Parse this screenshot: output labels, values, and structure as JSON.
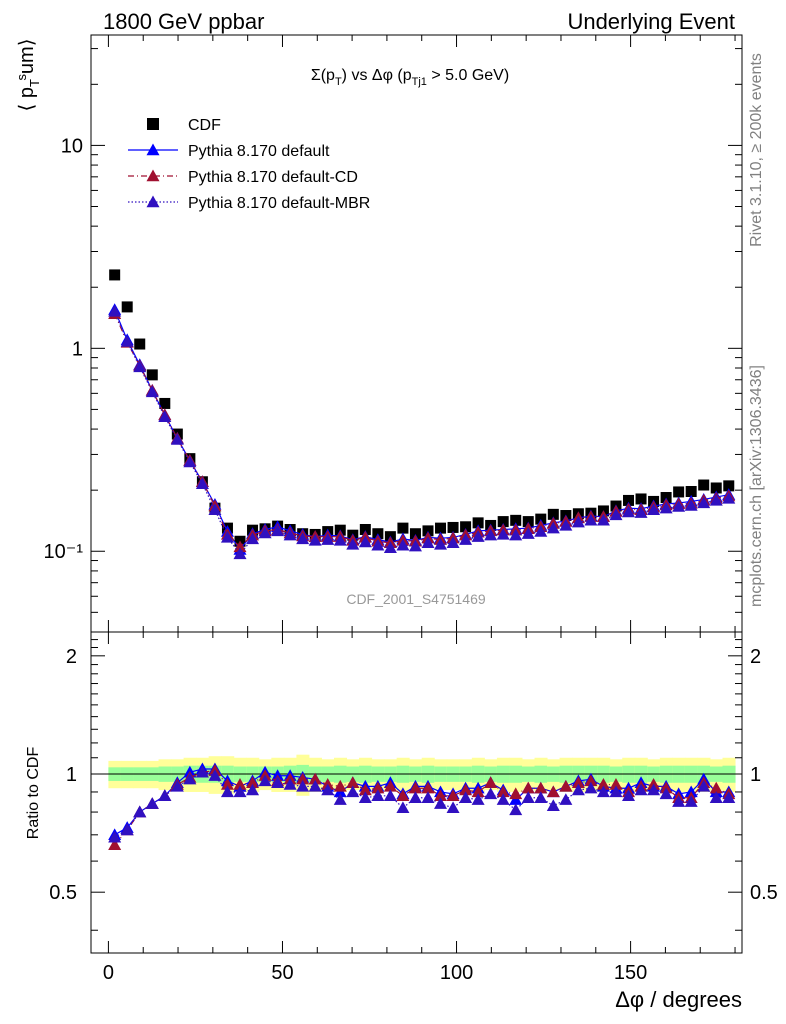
{
  "header": {
    "left": "1800 GeV ppbar",
    "right": "Underlying Event"
  },
  "side_labels": {
    "rivet": "Rivet 3.1.10, ≥ 200k events",
    "mcplots": "mcplots.cern.ch [arXiv:1306.3436]"
  },
  "watermark": "CDF_2001_S4751469",
  "chart_data": [
    {
      "type": "scatter",
      "title": "Σ(p_T) vs Δφ (p_Tj1 > 5.0 GeV)",
      "ylabel": "⟨ p_T^s um⟩",
      "xlabel": "Δφ / degrees",
      "xlim": [
        -5,
        182
      ],
      "ylim": [
        0.04,
        35
      ],
      "yscale": "log",
      "ytick_labels": [
        "10⁻¹",
        "1",
        "10"
      ],
      "xtick_labels": [
        "0",
        "50",
        "100",
        "150"
      ],
      "legend_position": "top-left",
      "x": [
        1.8,
        5.4,
        9.0,
        12.6,
        16.2,
        19.8,
        23.4,
        27.0,
        30.6,
        34.2,
        37.8,
        41.4,
        45.0,
        48.6,
        52.2,
        55.8,
        59.4,
        63.0,
        66.6,
        70.2,
        73.8,
        77.4,
        81.0,
        84.6,
        88.2,
        91.8,
        95.4,
        99.0,
        102.6,
        106.2,
        109.8,
        113.4,
        117.0,
        120.6,
        124.2,
        127.8,
        131.4,
        135.0,
        138.6,
        142.2,
        145.8,
        149.4,
        153.0,
        156.6,
        160.2,
        163.8,
        167.4,
        171.0,
        174.6,
        178.2
      ],
      "series": [
        {
          "name": "CDF",
          "marker": "square",
          "color": "#000000",
          "values": [
            2.3,
            1.6,
            1.05,
            0.74,
            0.535,
            0.378,
            0.286,
            0.22,
            0.163,
            0.13,
            0.112,
            0.127,
            0.129,
            0.133,
            0.128,
            0.122,
            0.121,
            0.125,
            0.127,
            0.12,
            0.128,
            0.122,
            0.118,
            0.13,
            0.122,
            0.126,
            0.13,
            0.131,
            0.132,
            0.138,
            0.134,
            0.14,
            0.142,
            0.14,
            0.144,
            0.152,
            0.15,
            0.153,
            0.154,
            0.158,
            0.167,
            0.178,
            0.181,
            0.176,
            0.184,
            0.196,
            0.197,
            0.212,
            0.205,
            0.21
          ]
        },
        {
          "name": "Pythia 8.170 default",
          "marker": "triangle",
          "line": "solid",
          "color": "#0000ff",
          "values": [
            1.55,
            1.1,
            0.83,
            0.62,
            0.47,
            0.36,
            0.28,
            0.22,
            0.17,
            0.125,
            0.102,
            0.122,
            0.128,
            0.132,
            0.126,
            0.121,
            0.118,
            0.12,
            0.119,
            0.114,
            0.118,
            0.114,
            0.111,
            0.115,
            0.113,
            0.117,
            0.116,
            0.117,
            0.121,
            0.126,
            0.127,
            0.128,
            0.129,
            0.13,
            0.134,
            0.138,
            0.141,
            0.146,
            0.149,
            0.148,
            0.158,
            0.163,
            0.162,
            0.167,
            0.171,
            0.173,
            0.176,
            0.18,
            0.185,
            0.19
          ]
        },
        {
          "name": "Pythia 8.170 default-CD",
          "marker": "triangle",
          "line": "dashdot",
          "color": "#a01030",
          "values": [
            1.48,
            1.07,
            0.82,
            0.62,
            0.47,
            0.36,
            0.28,
            0.22,
            0.167,
            0.121,
            0.105,
            0.12,
            0.126,
            0.128,
            0.123,
            0.119,
            0.118,
            0.118,
            0.118,
            0.113,
            0.117,
            0.112,
            0.11,
            0.113,
            0.112,
            0.116,
            0.114,
            0.116,
            0.12,
            0.124,
            0.126,
            0.127,
            0.127,
            0.129,
            0.132,
            0.137,
            0.14,
            0.146,
            0.148,
            0.148,
            0.157,
            0.161,
            0.16,
            0.165,
            0.169,
            0.171,
            0.172,
            0.178,
            0.182,
            0.187
          ]
        },
        {
          "name": "Pythia 8.170 default-MBR",
          "marker": "triangle",
          "line": "dotted",
          "color": "#3010c0",
          "values": [
            1.52,
            1.08,
            0.81,
            0.61,
            0.46,
            0.355,
            0.275,
            0.215,
            0.16,
            0.117,
            0.097,
            0.115,
            0.123,
            0.126,
            0.12,
            0.115,
            0.113,
            0.114,
            0.113,
            0.108,
            0.111,
            0.107,
            0.104,
            0.107,
            0.106,
            0.11,
            0.108,
            0.11,
            0.114,
            0.118,
            0.12,
            0.121,
            0.12,
            0.122,
            0.125,
            0.13,
            0.134,
            0.139,
            0.142,
            0.142,
            0.151,
            0.156,
            0.155,
            0.16,
            0.163,
            0.166,
            0.168,
            0.173,
            0.178,
            0.182
          ]
        }
      ]
    },
    {
      "type": "scatter",
      "ylabel": "Ratio to CDF",
      "xlabel": "Δφ / degrees",
      "xlim": [
        -5,
        182
      ],
      "ylim": [
        0.35,
        2.3
      ],
      "yscale": "log",
      "ytick_labels": [
        "0.5",
        "1",
        "2"
      ],
      "xtick_labels": [
        "0",
        "50",
        "100",
        "150"
      ],
      "reference_line": 1,
      "band_colors": {
        "inner": "#99ff99",
        "outer": "#ffff99"
      },
      "bands": {
        "inner_halfwidth": [
          0.04,
          0.04,
          0.04,
          0.04,
          0.045,
          0.045,
          0.05,
          0.05,
          0.05,
          0.05,
          0.045,
          0.045,
          0.045,
          0.045,
          0.05,
          0.055,
          0.045,
          0.045,
          0.05,
          0.045,
          0.05,
          0.045,
          0.045,
          0.05,
          0.045,
          0.05,
          0.045,
          0.045,
          0.045,
          0.05,
          0.045,
          0.05,
          0.05,
          0.045,
          0.05,
          0.045,
          0.05,
          0.05,
          0.05,
          0.05,
          0.045,
          0.05,
          0.05,
          0.045,
          0.05,
          0.05,
          0.05,
          0.05,
          0.045,
          0.05
        ],
        "outer_halfwidth": [
          0.08,
          0.08,
          0.08,
          0.08,
          0.09,
          0.09,
          0.1,
          0.1,
          0.11,
          0.11,
          0.1,
          0.1,
          0.09,
          0.1,
          0.1,
          0.12,
          0.1,
          0.09,
          0.1,
          0.09,
          0.1,
          0.09,
          0.09,
          0.1,
          0.09,
          0.1,
          0.09,
          0.09,
          0.09,
          0.1,
          0.09,
          0.1,
          0.1,
          0.09,
          0.1,
          0.09,
          0.1,
          0.1,
          0.1,
          0.1,
          0.09,
          0.1,
          0.1,
          0.09,
          0.1,
          0.1,
          0.1,
          0.1,
          0.09,
          0.1
        ]
      },
      "x": [
        1.8,
        5.4,
        9.0,
        12.6,
        16.2,
        19.8,
        23.4,
        27.0,
        30.6,
        34.2,
        37.8,
        41.4,
        45.0,
        48.6,
        52.2,
        55.8,
        59.4,
        63.0,
        66.6,
        70.2,
        73.8,
        77.4,
        81.0,
        84.6,
        88.2,
        91.8,
        95.4,
        99.0,
        102.6,
        106.2,
        109.8,
        113.4,
        117.0,
        120.6,
        124.2,
        127.8,
        131.4,
        135.0,
        138.6,
        142.2,
        145.8,
        149.4,
        153.0,
        156.6,
        160.2,
        163.8,
        167.4,
        171.0,
        174.6,
        178.2
      ],
      "series": [
        {
          "name": "Pythia 8.170 default",
          "marker": "triangle",
          "line": "solid",
          "color": "#0000ff",
          "values": [
            0.7,
            0.73,
            0.8,
            0.84,
            0.88,
            0.95,
            1.01,
            1.03,
            1.03,
            0.96,
            0.93,
            0.96,
            1.01,
            0.99,
            0.99,
            0.98,
            0.97,
            0.93,
            0.9,
            0.95,
            0.93,
            0.93,
            0.95,
            0.89,
            0.93,
            0.93,
            0.9,
            0.89,
            0.92,
            0.92,
            0.95,
            0.91,
            0.86,
            0.92,
            0.92,
            0.9,
            0.93,
            0.96,
            0.97,
            0.93,
            0.92,
            0.92,
            0.95,
            0.93,
            0.93,
            0.89,
            0.9,
            0.97,
            0.9,
            0.9
          ]
        },
        {
          "name": "Pythia 8.170 default-CD",
          "marker": "triangle",
          "line": "dashdot",
          "color": "#a01030",
          "values": [
            0.66,
            0.72,
            0.8,
            0.84,
            0.88,
            0.94,
            0.98,
            1.01,
            1.02,
            0.94,
            0.94,
            0.95,
            0.99,
            0.96,
            0.97,
            0.97,
            0.97,
            0.94,
            0.93,
            0.95,
            0.91,
            0.92,
            0.93,
            0.88,
            0.92,
            0.92,
            0.88,
            0.88,
            0.91,
            0.9,
            0.95,
            0.9,
            0.89,
            0.92,
            0.92,
            0.9,
            0.93,
            0.95,
            0.96,
            0.94,
            0.94,
            0.9,
            0.93,
            0.94,
            0.92,
            0.87,
            0.87,
            0.95,
            0.92,
            0.89
          ]
        },
        {
          "name": "Pythia 8.170 default-MBR",
          "marker": "triangle",
          "line": "dotted",
          "color": "#3010c0",
          "values": [
            0.69,
            0.72,
            0.8,
            0.84,
            0.88,
            0.93,
            0.97,
            1.01,
            0.99,
            0.9,
            0.9,
            0.91,
            0.96,
            0.95,
            0.94,
            0.93,
            0.93,
            0.91,
            0.86,
            0.9,
            0.87,
            0.88,
            0.88,
            0.82,
            0.87,
            0.87,
            0.84,
            0.82,
            0.87,
            0.86,
            0.89,
            0.86,
            0.81,
            0.87,
            0.87,
            0.83,
            0.86,
            0.91,
            0.92,
            0.9,
            0.9,
            0.88,
            0.91,
            0.91,
            0.89,
            0.85,
            0.85,
            0.93,
            0.87,
            0.87
          ]
        }
      ]
    }
  ]
}
